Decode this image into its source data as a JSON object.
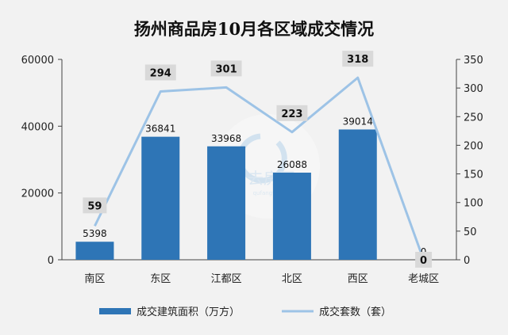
{
  "chart_data": {
    "type": "bar+line",
    "title": "扬州商品房10月各区域成交情况",
    "categories": [
      "南区",
      "东区",
      "江都区",
      "北区",
      "西区",
      "老城区"
    ],
    "series": [
      {
        "name": "成交建筑面积（万方）",
        "type": "bar",
        "axis": "left",
        "values": [
          5398,
          36841,
          33968,
          26088,
          39014,
          0
        ],
        "color": "#2e75b6"
      },
      {
        "name": "成交套数（套）",
        "type": "line",
        "axis": "right",
        "values": [
          59,
          294,
          301,
          223,
          318,
          0
        ],
        "color": "#9dc3e6"
      }
    ],
    "y_left": {
      "min": 0,
      "max": 60000,
      "ticks": [
        0,
        20000,
        40000,
        60000
      ]
    },
    "y_right": {
      "min": 0,
      "max": 350,
      "ticks": [
        0,
        50,
        100,
        150,
        200,
        250,
        300,
        350
      ]
    },
    "legend": "bottom",
    "grid": false
  },
  "watermark": {
    "text": "去房网",
    "subtext": "qufangw.com"
  }
}
